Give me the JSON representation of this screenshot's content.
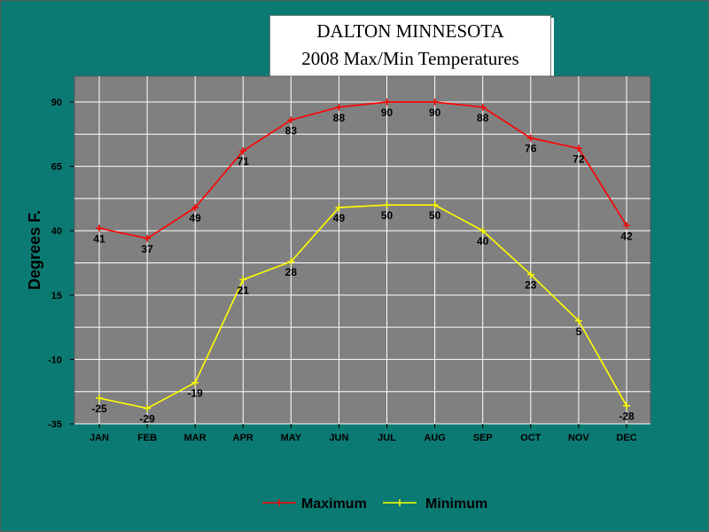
{
  "chart_data": {
    "type": "line",
    "title_line1": "DALTON MINNESOTA",
    "title_line2": "2008 Max/Min Temperatures",
    "ylabel": "Degrees F.",
    "xlabel": "",
    "categories": [
      "JAN",
      "FEB",
      "MAR",
      "APR",
      "MAY",
      "JUN",
      "JUL",
      "AUG",
      "SEP",
      "OCT",
      "NOV",
      "DEC"
    ],
    "ylim": [
      -35,
      100
    ],
    "yticks": [
      90,
      65,
      40,
      15,
      -10,
      -35
    ],
    "grid": true,
    "legend": "bottom",
    "series": [
      {
        "name": "Maximum",
        "color": "#ff0000",
        "values": [
          41,
          37,
          49,
          71,
          83,
          88,
          90,
          90,
          88,
          76,
          72,
          42
        ]
      },
      {
        "name": "Minimum",
        "color": "#ffff00",
        "values": [
          -25,
          -29,
          -19,
          21,
          28,
          49,
          50,
          50,
          40,
          23,
          5,
          -28
        ]
      }
    ],
    "colors": {
      "background": "#0b7a73",
      "plot_area": "#808080",
      "grid": "#ffffff"
    }
  }
}
